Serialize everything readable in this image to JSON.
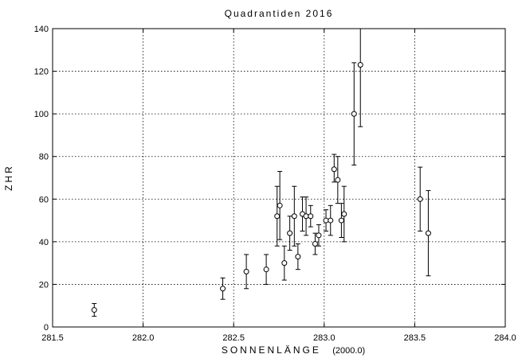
{
  "chart_data": {
    "type": "scatter",
    "title": "Quadrantiden 2016",
    "xlabel": "SONNENLÄNGE",
    "xlabel_unit": "(2000.0)",
    "ylabel": "ZHR",
    "xlim": [
      281.5,
      284.0
    ],
    "ylim": [
      0,
      140
    ],
    "grid": true,
    "x_ticks": [
      "281.5",
      "282.0",
      "282.5",
      "283.0",
      "283.5",
      "284.0"
    ],
    "y_ticks": [
      "0",
      "20",
      "40",
      "60",
      "80",
      "100",
      "120",
      "140"
    ],
    "points": [
      {
        "x": 281.73,
        "y": 8,
        "lo": 5,
        "hi": 11
      },
      {
        "x": 282.44,
        "y": 18,
        "lo": 13,
        "hi": 23
      },
      {
        "x": 282.57,
        "y": 26,
        "lo": 18,
        "hi": 34
      },
      {
        "x": 282.68,
        "y": 27,
        "lo": 20,
        "hi": 34
      },
      {
        "x": 282.74,
        "y": 52,
        "lo": 38,
        "hi": 66
      },
      {
        "x": 282.755,
        "y": 57,
        "lo": 41,
        "hi": 73
      },
      {
        "x": 282.78,
        "y": 30,
        "lo": 22,
        "hi": 38
      },
      {
        "x": 282.81,
        "y": 44,
        "lo": 36,
        "hi": 52
      },
      {
        "x": 282.835,
        "y": 52,
        "lo": 38,
        "hi": 66
      },
      {
        "x": 282.855,
        "y": 33,
        "lo": 27,
        "hi": 39
      },
      {
        "x": 282.88,
        "y": 53,
        "lo": 45,
        "hi": 61
      },
      {
        "x": 282.9,
        "y": 52,
        "lo": 43,
        "hi": 61
      },
      {
        "x": 282.925,
        "y": 52,
        "lo": 47,
        "hi": 57
      },
      {
        "x": 282.95,
        "y": 39,
        "lo": 34,
        "hi": 44
      },
      {
        "x": 282.97,
        "y": 43,
        "lo": 38,
        "hi": 48
      },
      {
        "x": 283.01,
        "y": 50,
        "lo": 45,
        "hi": 55
      },
      {
        "x": 283.035,
        "y": 50,
        "lo": 43,
        "hi": 57
      },
      {
        "x": 283.055,
        "y": 74,
        "lo": 68,
        "hi": 81
      },
      {
        "x": 283.075,
        "y": 69,
        "lo": 58,
        "hi": 80
      },
      {
        "x": 283.095,
        "y": 50,
        "lo": 42,
        "hi": 58
      },
      {
        "x": 283.11,
        "y": 53,
        "lo": 40,
        "hi": 66
      },
      {
        "x": 283.165,
        "y": 100,
        "lo": 76,
        "hi": 124
      },
      {
        "x": 283.2,
        "y": 123,
        "lo": 94,
        "hi": 140
      },
      {
        "x": 283.53,
        "y": 60,
        "lo": 45,
        "hi": 75
      },
      {
        "x": 283.575,
        "y": 44,
        "lo": 24,
        "hi": 64
      }
    ]
  }
}
